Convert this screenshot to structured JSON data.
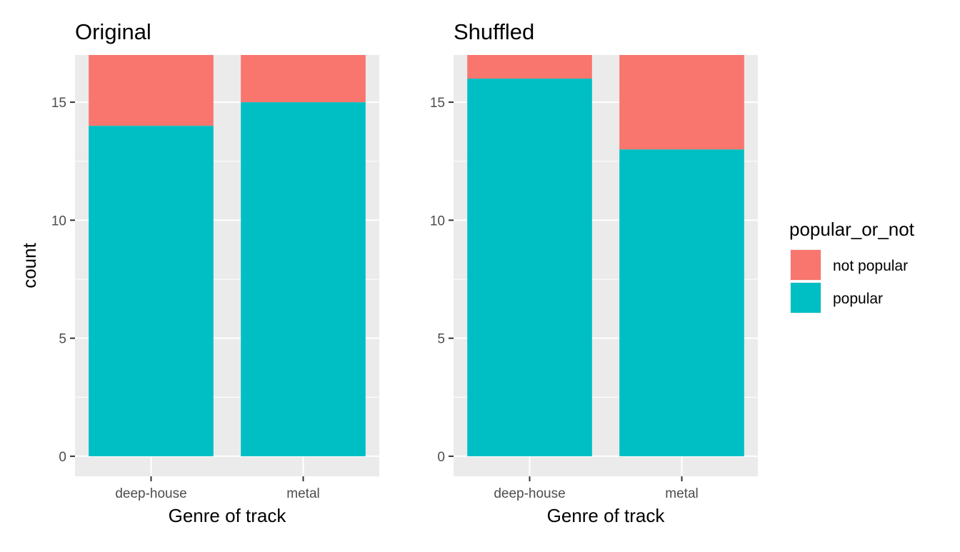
{
  "chart_data": [
    {
      "type": "bar",
      "stacked": true,
      "title": "Original",
      "xlabel": "Genre of track",
      "ylabel": "count",
      "categories": [
        "deep-house",
        "metal"
      ],
      "series": [
        {
          "name": "not popular",
          "values": [
            3,
            2
          ]
        },
        {
          "name": "popular",
          "values": [
            14,
            15
          ]
        }
      ],
      "ylim": [
        -0.85,
        17
      ],
      "yticks": [
        0,
        5,
        10,
        15
      ],
      "grid": true
    },
    {
      "type": "bar",
      "stacked": true,
      "title": "Shuffled",
      "xlabel": "Genre of track",
      "ylabel": "",
      "categories": [
        "deep-house",
        "metal"
      ],
      "series": [
        {
          "name": "not popular",
          "values": [
            1,
            4
          ]
        },
        {
          "name": "popular",
          "values": [
            16,
            13
          ]
        }
      ],
      "ylim": [
        -0.85,
        17
      ],
      "yticks": [
        0,
        5,
        10,
        15
      ],
      "grid": true
    }
  ],
  "legend": {
    "title": "popular_or_not",
    "placement": "right",
    "items": [
      {
        "label": "not popular",
        "color": "#F8766D"
      },
      {
        "label": "popular",
        "color": "#00BFC4"
      }
    ]
  },
  "colors": {
    "not popular": "#F8766D",
    "popular": "#00BFC4",
    "panel_background": "#EBEBEB",
    "grid": "#FFFFFF",
    "tick": "#333333",
    "tick_label": "#4D4D4D"
  }
}
